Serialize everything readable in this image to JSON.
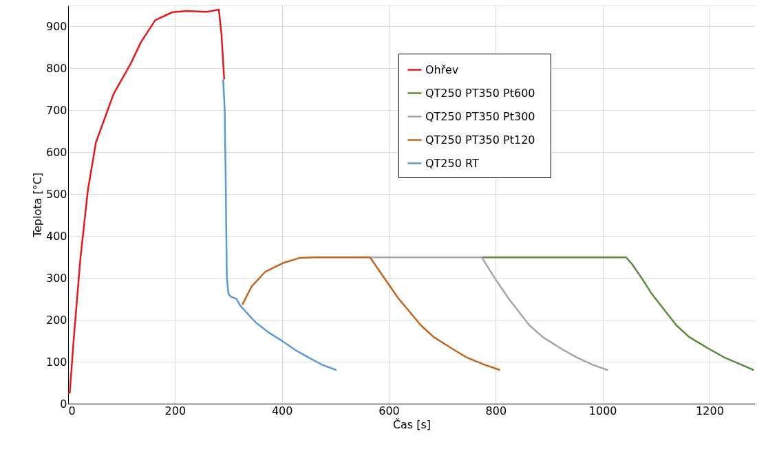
{
  "chart_data": {
    "type": "line",
    "xlabel": "Čas [s]",
    "ylabel": "Teplota [°C]",
    "xlim": [
      0,
      1285
    ],
    "ylim": [
      0,
      950
    ],
    "xticks": [
      0,
      200,
      400,
      600,
      800,
      1000,
      1200
    ],
    "yticks": [
      0,
      100,
      200,
      300,
      400,
      500,
      600,
      700,
      800,
      900
    ],
    "grid": true,
    "legend": "top right",
    "line_style": "solid",
    "marker": "none",
    "series": [
      {
        "name": "Ohřev",
        "color": "#e31a1c",
        "x": [
          0,
          3,
          10,
          23,
          37,
          52,
          85,
          117,
          136,
          163,
          195,
          221,
          260,
          282,
          287,
          292
        ],
        "values": [
          26,
          26,
          146,
          347,
          510,
          623,
          739,
          811,
          862,
          915,
          934,
          937,
          935,
          940,
          880,
          774
        ]
      },
      {
        "name": "QT250  PT350  Pt600",
        "color": "#5b8a3c",
        "x": [
          774,
          1044,
          1055,
          1074,
          1092,
          1138,
          1162,
          1200,
          1228,
          1256,
          1283
        ],
        "values": [
          349,
          349,
          333,
          298,
          262,
          187,
          159,
          130,
          110,
          95,
          80
        ]
      },
      {
        "name": "QT250  PT350  Pt300",
        "color": "#a5a5a5",
        "x": [
          565,
          774,
          799,
          824,
          863,
          888,
          924,
          952,
          981,
          1010
        ],
        "values": [
          349,
          349,
          298,
          251,
          187,
          159,
          130,
          110,
          93,
          80
        ]
      },
      {
        "name": "QT250  PT350  Pt120",
        "color": "#c0651f",
        "x": [
          326,
          343,
          369,
          403,
          434,
          460,
          565,
          587,
          618,
          660,
          684,
          720,
          746,
          779,
          804,
          808
        ],
        "values": [
          236,
          279,
          315,
          336,
          348,
          349,
          349,
          308,
          251,
          187,
          159,
          130,
          110,
          93,
          82,
          80
        ]
      },
      {
        "name": "QT250  RT",
        "color": "#5b9bd5",
        "x": [
          290,
          293,
          294,
          295,
          296,
          297,
          300,
          305,
          315,
          322,
          350,
          375,
          400,
          425,
          450,
          475,
          502
        ],
        "values": [
          774,
          700,
          600,
          520,
          400,
          300,
          262,
          255,
          250,
          234,
          195,
          170,
          150,
          128,
          110,
          93,
          80
        ]
      }
    ]
  }
}
